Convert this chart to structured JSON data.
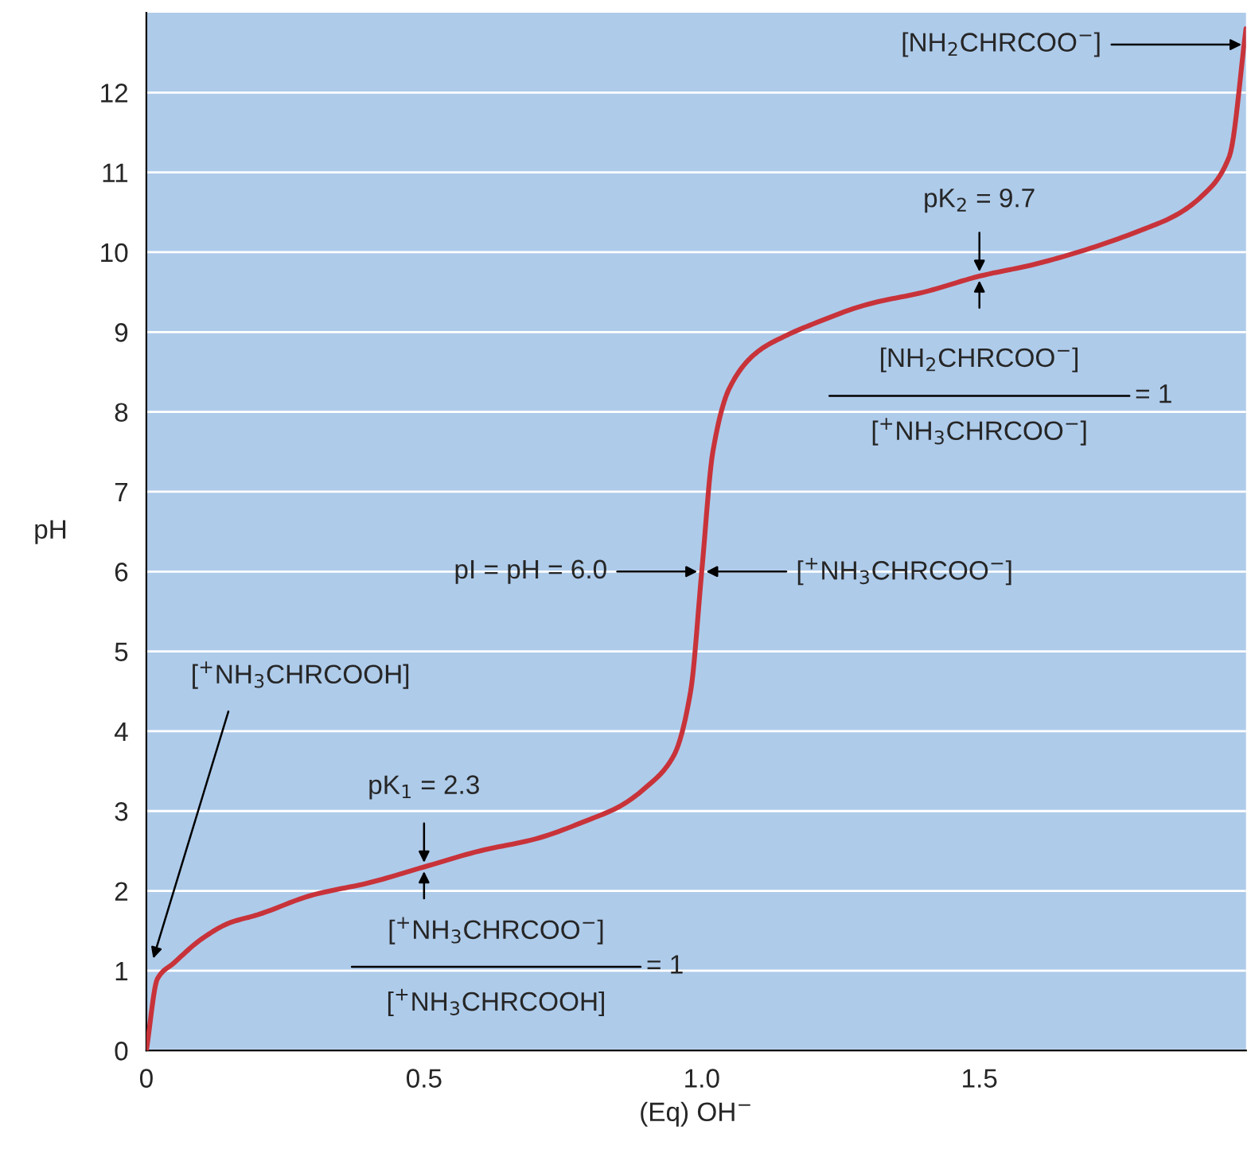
{
  "chart_data": {
    "type": "line",
    "xlabel": "(Eq) OH$^{−}$",
    "ylabel": "pH",
    "x": [
      0,
      0.02,
      0.05,
      0.1,
      0.15,
      0.2,
      0.3,
      0.4,
      0.5,
      0.6,
      0.7,
      0.8,
      0.85,
      0.9,
      0.95,
      0.98,
      1.0,
      1.02,
      1.05,
      1.1,
      1.15,
      1.2,
      1.3,
      1.4,
      1.5,
      1.6,
      1.7,
      1.8,
      1.85,
      1.9,
      1.95,
      1.98
    ],
    "series": [
      {
        "color": "#c8333a",
        "values": [
          0,
          0.9,
          1.1,
          1.4,
          1.6,
          1.7,
          1.95,
          2.1,
          2.3,
          2.5,
          2.65,
          2.9,
          3.05,
          3.3,
          3.7,
          4.5,
          6.0,
          7.5,
          8.3,
          8.75,
          8.95,
          9.1,
          9.35,
          9.5,
          9.7,
          9.85,
          10.05,
          10.3,
          10.45,
          10.7,
          11.2,
          12.8
        ]
      }
    ],
    "xlim": [
      0,
      1.98
    ],
    "ylim": [
      0,
      13
    ],
    "xticks": [
      0,
      {
        "value": 0.5,
        "label": "0.5"
      },
      {
        "value": 1.0,
        "label": "1.0"
      },
      {
        "value": 1.5,
        "label": "1.5"
      }
    ],
    "yticks": [
      0,
      1,
      2,
      3,
      4,
      5,
      6,
      7,
      8,
      9,
      10,
      11,
      12
    ],
    "grid": "y",
    "marker": "none",
    "line_style": "solid",
    "annotations": [
      {
        "text": "[NH$_{2}$CHRCOO$^{−}$]",
        "x": 1.98,
        "y": 12.6
      },
      {
        "text": "pK$_{2}$ = 9.7",
        "x": 1.5,
        "y": 9.7
      },
      "[NH$_{2}$CHRCOO$^{−}$]",
      "[$^{+}$NH$_{3}$CHRCOO$^{−}$]",
      "= 1",
      {
        "text": "pI = pH = 6.0",
        "x": 1.0,
        "y": 6.0
      },
      {
        "text": "[$^{+}$NH$_{3}$CHRCOO$^{−}$]",
        "x": 1.0,
        "y": 6.0
      },
      "[$^{+}$NH$_{3}$CHRCOOH]",
      {
        "text": "pK$_{1}$ = 2.3",
        "x": 0.5,
        "y": 2.3
      },
      "[$^{+}$NH$_{3}$CHRCOO$^{−}$]",
      "[$^{+}$NH$_{3}$CHRCOOH]",
      "= 1"
    ]
  }
}
